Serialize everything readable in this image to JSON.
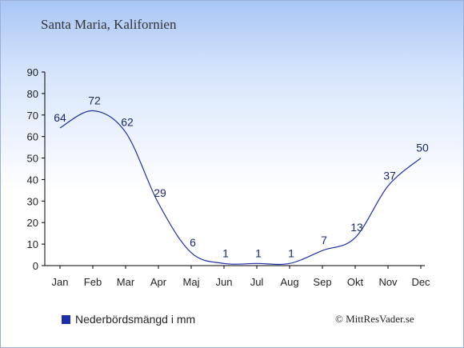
{
  "title": "Santa Maria, Kalifornien",
  "legend_label": "Nederbördsmängd i mm",
  "credit": "© MittResVader.se",
  "colors": {
    "line": "#1d2fa8",
    "label": "#1a2a6c",
    "axis": "#000000"
  },
  "chart_data": {
    "type": "line",
    "categories": [
      "Jan",
      "Feb",
      "Mar",
      "Apr",
      "Maj",
      "Jun",
      "Jul",
      "Aug",
      "Sep",
      "Okt",
      "Nov",
      "Dec"
    ],
    "series": [
      {
        "name": "Nederbördsmängd i mm",
        "values": [
          64,
          72,
          62,
          29,
          6,
          1,
          1,
          1,
          7,
          13,
          37,
          50
        ]
      }
    ],
    "yticks": [
      0,
      10,
      20,
      30,
      40,
      50,
      60,
      70,
      80,
      90
    ],
    "ylim": [
      0,
      90
    ],
    "xlabel": "",
    "ylabel": "",
    "grid": false,
    "legend_position": "bottom-left"
  }
}
